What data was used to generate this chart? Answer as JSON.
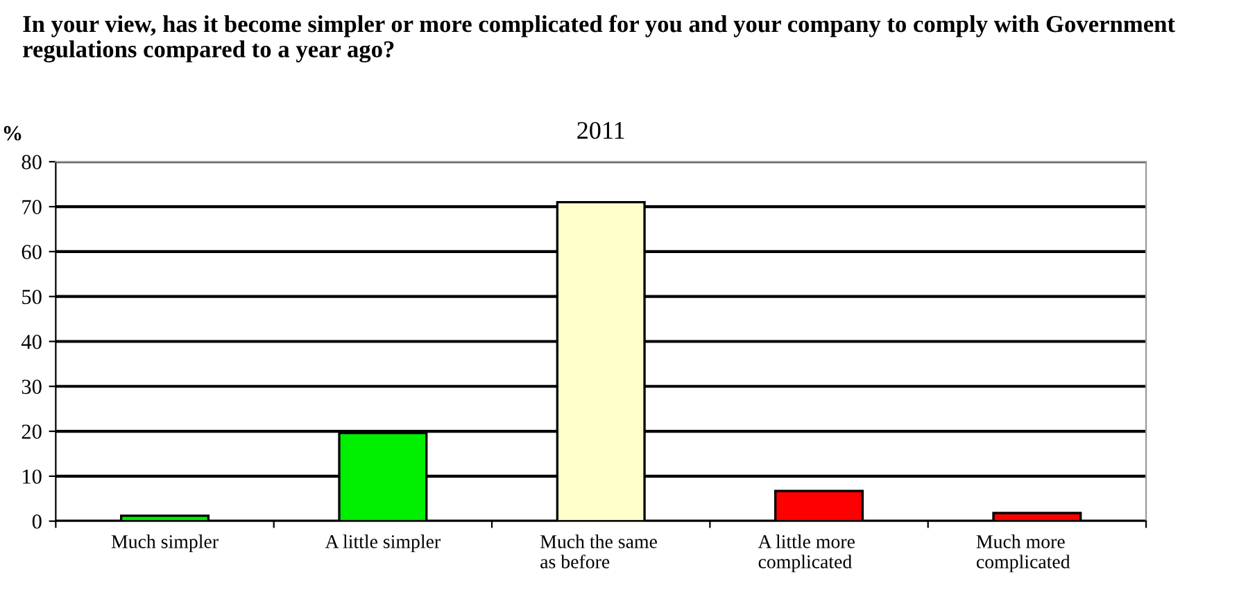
{
  "chart_data": {
    "type": "bar",
    "title": "In your view, has it become simpler or more complicated for you and your company to comply with Government regulations compared to a year ago?",
    "subtitle": "2011",
    "ylabel": "%",
    "categories": [
      "Much simpler",
      "A little simpler",
      "Much the same\nas before",
      "A little more\ncomplicated",
      "Much more\ncomplicated"
    ],
    "values": [
      1.2,
      19.6,
      71,
      6.7,
      1.8
    ],
    "colors": [
      "#00ee00",
      "#00ee00",
      "#ffffcc",
      "#ff0000",
      "#ff0000"
    ],
    "ylim": [
      0,
      80
    ],
    "yticks": [
      0,
      10,
      20,
      30,
      40,
      50,
      60,
      70,
      80
    ],
    "grid": "y",
    "legend": false
  }
}
